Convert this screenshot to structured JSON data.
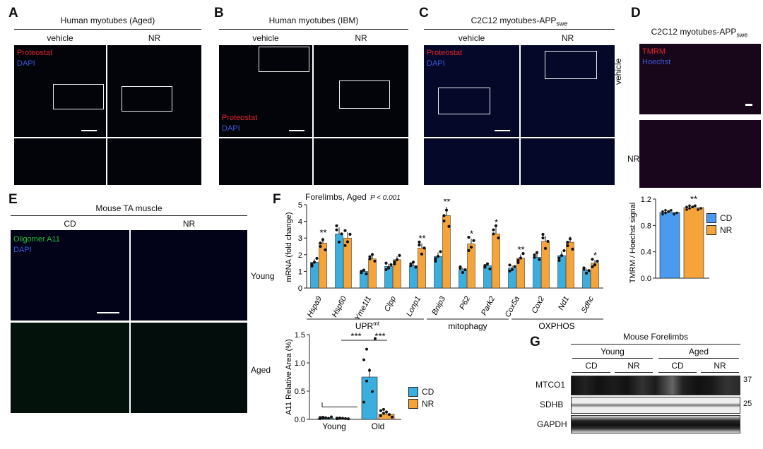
{
  "panels": {
    "A": {
      "label": "A",
      "title": "Human myotubes (Aged)",
      "cols": [
        "vehicle",
        "NR"
      ],
      "stains": [
        "Proteostat",
        "DAPI"
      ]
    },
    "B": {
      "label": "B",
      "title": "Human myotubes (IBM)",
      "cols": [
        "vehicle",
        "NR"
      ],
      "stains": [
        "Proteostat",
        "DAPI"
      ]
    },
    "C": {
      "label": "C",
      "title": "C2C12 myotubes-APP",
      "title_sub": "swe",
      "cols": [
        "vehicle",
        "NR"
      ],
      "stains": [
        "Proteostat",
        "DAPI"
      ]
    },
    "D": {
      "label": "D",
      "title": "C2C12 myotubes-APP",
      "title_sub": "swe",
      "rows": [
        "vehicle",
        "NR"
      ],
      "stains": [
        "TMRM",
        "Hoechst"
      ]
    },
    "E": {
      "label": "E",
      "title": "Mouse TA muscle",
      "cols": [
        "CD",
        "NR"
      ],
      "rows": [
        "Young",
        "Aged"
      ],
      "stains": [
        "Oligomer A11",
        "DAPI"
      ]
    },
    "F": {
      "label": "F",
      "title": "Forelimbs, Aged",
      "pval": "P < 0.001",
      "groups": [
        "UPR",
        "mitophagy",
        "OXPHOS"
      ],
      "group_sup": "mt"
    },
    "G": {
      "label": "G",
      "title": "Mouse Forelimbs",
      "ages": [
        "Young",
        "Aged"
      ],
      "treat": [
        "CD",
        "NR",
        "CD",
        "NR"
      ],
      "bands": [
        "MTCO1",
        "SDHB",
        "GAPDH"
      ],
      "mw": [
        "37",
        "25"
      ]
    }
  },
  "chart_data": [
    {
      "type": "bar",
      "ylabel": "mRNA (fold change)",
      "ylim": [
        0,
        5
      ],
      "yticks": [
        0,
        1,
        2,
        3,
        4,
        5
      ],
      "categories": [
        "Hspa9",
        "Hsp60",
        "Yme1l1",
        "Clpp",
        "Lonp1",
        "Bnip3",
        "P62",
        "Park2",
        "Cox5a",
        "Cox2",
        "Nd1",
        "Sdhc"
      ],
      "series": [
        {
          "name": "CD",
          "values": [
            1.55,
            3.25,
            1.0,
            1.3,
            1.35,
            1.9,
            1.1,
            1.35,
            1.2,
            1.85,
            1.95,
            1.05
          ]
        },
        {
          "name": "NR",
          "values": [
            2.7,
            3.0,
            1.75,
            1.7,
            2.4,
            4.35,
            2.65,
            3.25,
            1.8,
            2.8,
            2.75,
            1.5
          ]
        }
      ],
      "annotations": [
        "**",
        "",
        "",
        "",
        "**",
        "**",
        "*",
        "*",
        "**",
        "",
        "",
        "*"
      ],
      "colors": {
        "CD": "#3aaedf",
        "NR": "#f5a43a"
      }
    },
    {
      "type": "bar",
      "ylabel": "TMRM / Hoechst signal",
      "ylim": [
        0,
        1.2
      ],
      "yticks": [
        "0.0",
        "0.4",
        "0.8",
        "1.2"
      ],
      "categories": [
        "CD",
        "NR"
      ],
      "values": [
        1.0,
        1.07
      ],
      "annotation": "**",
      "legend": [
        "CD",
        "NR"
      ],
      "colors": {
        "CD": "#4a9bf0",
        "NR": "#f5a43a"
      }
    },
    {
      "type": "bar",
      "ylabel": "A11 Relative Area (%)",
      "ylim": [
        0,
        1.5
      ],
      "yticks": [
        "0.0",
        "0.5",
        "1.0",
        "1.5"
      ],
      "categories": [
        "Young",
        "Old"
      ],
      "series": [
        {
          "name": "CD",
          "values": [
            0.02,
            0.75
          ]
        },
        {
          "name": "NR",
          "values": [
            0.01,
            0.09
          ]
        }
      ],
      "annotations": [
        "***",
        "***"
      ],
      "legend": [
        "CD",
        "NR"
      ],
      "colors": {
        "CD": "#3aaedf",
        "NR": "#f5a43a"
      }
    }
  ]
}
